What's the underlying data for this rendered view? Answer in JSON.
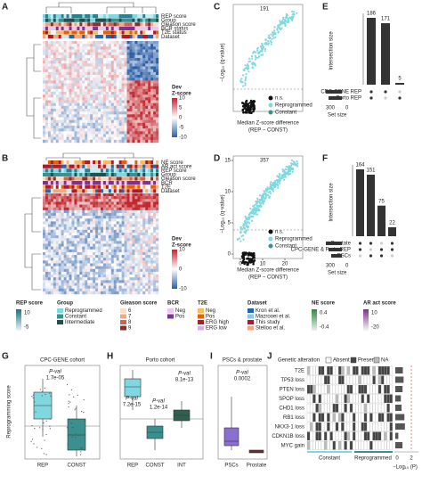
{
  "panels": {
    "A": {
      "label": "A",
      "rows": [
        "REP score",
        "Group",
        "Gleason score",
        "BCR status",
        "T2E status",
        "Dataset"
      ],
      "legend_title": [
        "Dev",
        "Z-score"
      ],
      "legend_ticks": [
        10,
        5,
        0,
        -5,
        -10
      ]
    },
    "B": {
      "label": "B",
      "rows": [
        "NE score",
        "AR act score",
        "REP score",
        "Group",
        "Gleason score",
        "BCR",
        "T2E",
        "Dataset"
      ],
      "legend_title": [
        "Dev",
        "Z-score"
      ],
      "legend_ticks": [
        10,
        0,
        -10
      ]
    },
    "C": {
      "label": "C",
      "y_label": "−Log₁₀ (q-value)",
      "x_label": [
        "Median Z-score difference",
        "(REP − CONST)"
      ],
      "count": 191,
      "legend": [
        "n.s.",
        "Reprogrammed",
        "Constant"
      ]
    },
    "D": {
      "label": "D",
      "y_label": "−Log₁₀ (q-value)",
      "x_label": [
        "Median Z-score difference",
        "(REP − CONST)"
      ],
      "count": 357,
      "legend": [
        "n.s.",
        "Reprogrammed",
        "Constant"
      ],
      "yticks": [
        0,
        5,
        10,
        15
      ],
      "xticks": [
        0,
        10,
        20
      ]
    },
    "E": {
      "label": "E",
      "y_label": "Intersection size",
      "values": [
        186,
        171,
        5
      ],
      "sets": [
        "CPC-GENE REP",
        "Porto REP"
      ],
      "set_size_label": "Set size",
      "set_size_ticks": [
        300,
        0
      ]
    },
    "F": {
      "label": "F",
      "y_label": "Intersection size",
      "values": [
        164,
        151,
        75,
        22
      ],
      "label_colors": [
        "#e0443a",
        "#333333",
        "#333333",
        "#e0443a"
      ],
      "sets": [
        "Prostate",
        "CPC-GENE & Porto REP",
        "PSCs"
      ],
      "set_size_label": "Set size",
      "set_size_ticks": [
        300,
        0
      ]
    },
    "legend": {
      "rep_score": {
        "title": "REP score",
        "ticks": [
          10,
          -5
        ]
      },
      "group": {
        "title": "Group",
        "items": [
          "Reprogrammed",
          "Constant",
          "Intermediate"
        ]
      },
      "gleason": {
        "title": "Gleason score",
        "items": [
          "6",
          "7",
          "8",
          "9"
        ]
      },
      "bcr": {
        "title": "BCR",
        "items": [
          "Neg",
          "Pos"
        ]
      },
      "t2e": {
        "title": "T2E",
        "items": [
          "Neg",
          "Pos",
          "ERG high",
          "ERG low"
        ]
      },
      "dataset": {
        "title": "Dataset",
        "items": [
          "Kron et al.",
          "Mazrooei et al.",
          "This study",
          "Stelloo et al."
        ]
      },
      "ne_score": {
        "title": "NE score",
        "ticks": [
          0.4,
          -0.4
        ]
      },
      "ar_score": {
        "title": "AR act score",
        "ticks": [
          10,
          -20
        ]
      }
    },
    "G": {
      "label": "G",
      "title": "CPC-GENE cohort",
      "y_label": "Reprogramming score",
      "pvals": [
        [
          "P-val",
          "1.7e-05"
        ]
      ],
      "categories": [
        "REP",
        "CONST"
      ]
    },
    "H": {
      "label": "H",
      "title": "Porto cohort",
      "pvals": [
        [
          "P-val",
          "7.2e-15"
        ],
        [
          "P-val",
          "8.1e-13"
        ],
        [
          "P-val",
          "1.2e-14"
        ]
      ],
      "categories": [
        "REP",
        "CONST",
        "INT"
      ]
    },
    "I": {
      "label": "I",
      "title": "PSCs & prostate",
      "pvals": [
        [
          "P-val",
          "0.0002"
        ]
      ],
      "categories": [
        "PSCs",
        "Prostate"
      ]
    },
    "J": {
      "label": "J",
      "title": "Genetic alteration",
      "legend": [
        "Absent",
        "Present",
        "NA"
      ],
      "rows": [
        "T2E",
        "TP53 loss",
        "PTEN loss",
        "SPOP loss",
        "CHD1 loss",
        "RB1 loss",
        "NKX3-1 loss",
        "CDKN1B loss",
        "MYC gain"
      ],
      "groups": [
        "Constant",
        "Reprogrammed"
      ],
      "axis_ticks": [
        0,
        2
      ],
      "axis_label": "−Log₁₀ (P)"
    }
  }
}
